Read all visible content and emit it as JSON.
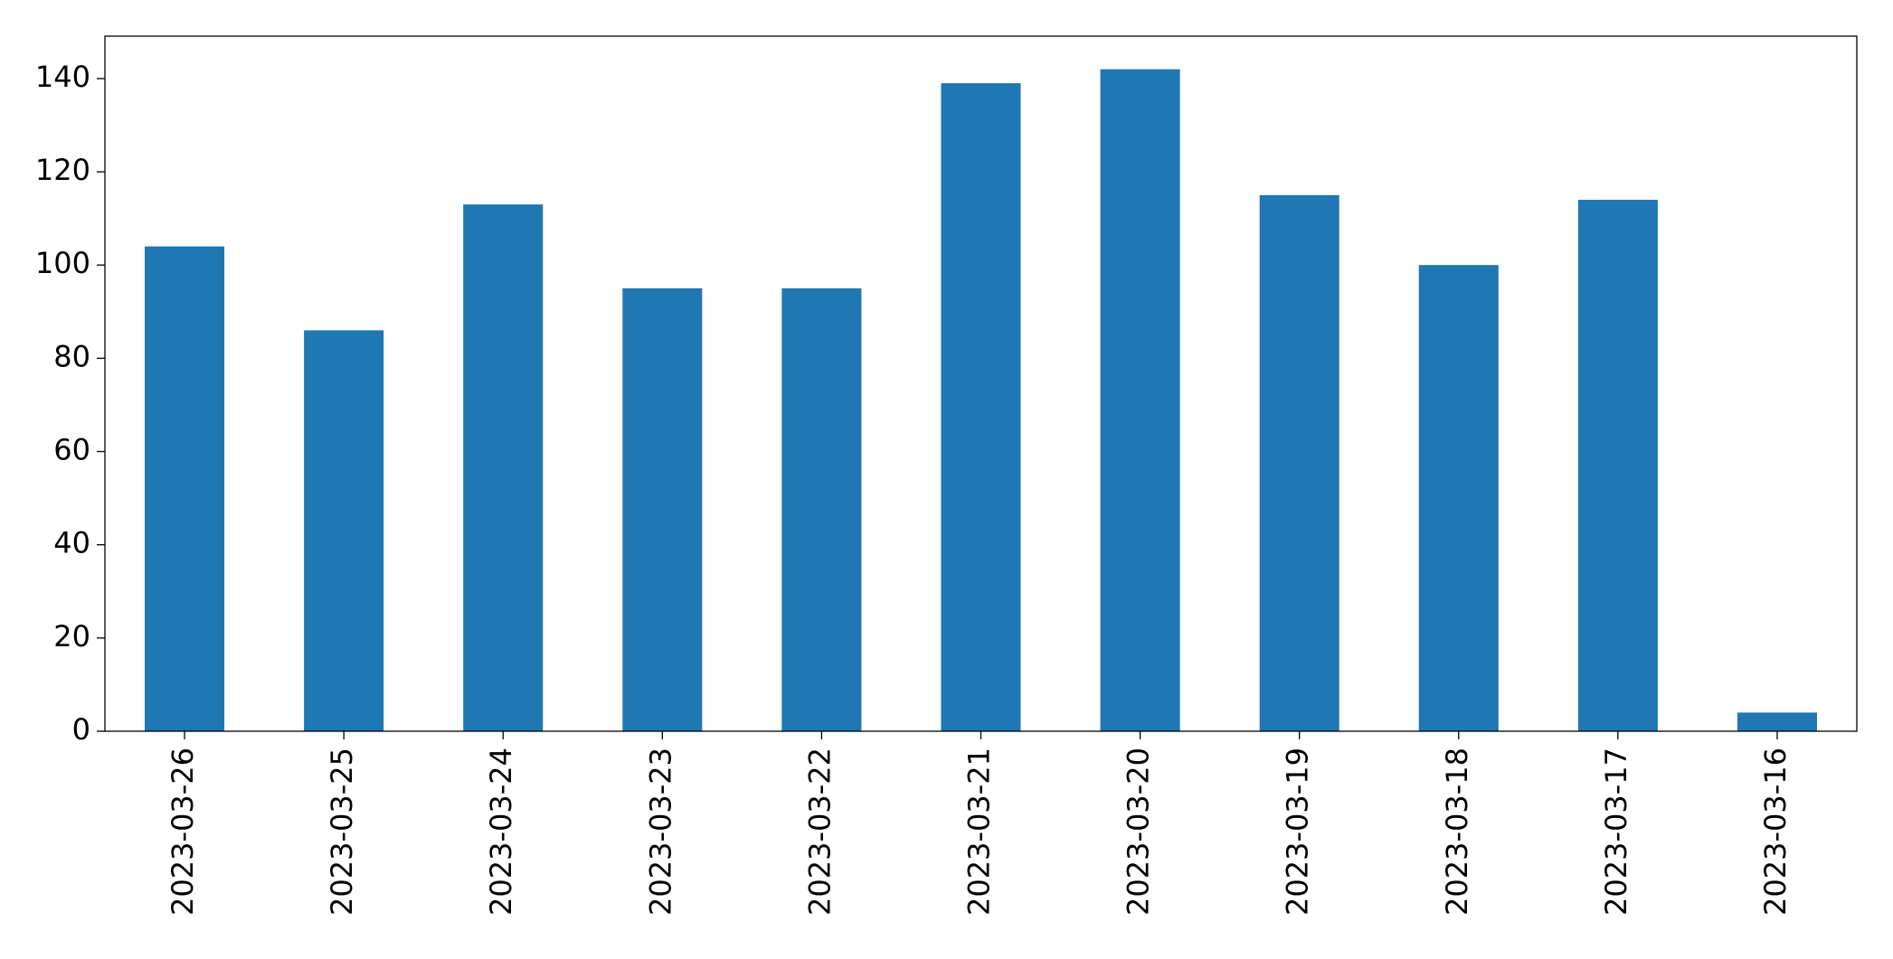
{
  "chart_data": {
    "type": "bar",
    "categories": [
      "2023-03-26",
      "2023-03-25",
      "2023-03-24",
      "2023-03-23",
      "2023-03-22",
      "2023-03-21",
      "2023-03-20",
      "2023-03-19",
      "2023-03-18",
      "2023-03-17",
      "2023-03-16"
    ],
    "values": [
      104,
      86,
      113,
      95,
      95,
      139,
      142,
      115,
      100,
      114,
      4
    ],
    "color": "#1f77b4",
    "ylim": [
      0,
      149.1
    ],
    "yticks": [
      0,
      20,
      40,
      60,
      80,
      100,
      120,
      140
    ],
    "grid": false
  }
}
